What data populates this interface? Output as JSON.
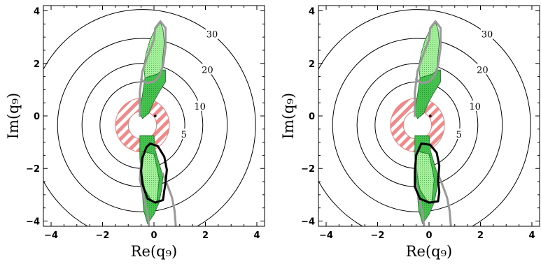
{
  "chart_data": [
    {
      "type": "contour",
      "xlabel": "Re(q₉)",
      "ylabel": "Im(q₉)",
      "xlim": [
        -4.3,
        4.3
      ],
      "ylim": [
        -4.2,
        4.2
      ],
      "x_ticks": [
        "−4",
        "−2",
        "0",
        "2",
        "4"
      ],
      "y_ticks": [
        "−4",
        "−2",
        "0",
        "2",
        "4"
      ],
      "contours": {
        "center": [
          -0.45,
          -0.35
        ],
        "levels": [
          {
            "label": "5",
            "radius": 1.65
          },
          {
            "label": "10",
            "radius": 2.35
          },
          {
            "label": "20",
            "radius": 3.3
          },
          {
            "label": "30",
            "radius": 4.4
          }
        ]
      },
      "hatched_annulus": {
        "center": [
          -0.45,
          -0.35
        ],
        "inner_radius": 0.55,
        "outer_radius": 1.05,
        "color": "#e97a7a"
      },
      "marker_point": [
        0.05,
        0.0
      ],
      "regions": {
        "light_green_upper": {
          "color": "#9ef08f",
          "points": [
            [
              -0.35,
              1.45
            ],
            [
              -0.4,
              1.9
            ],
            [
              -0.3,
              2.4
            ],
            [
              -0.15,
              2.9
            ],
            [
              0.05,
              3.3
            ],
            [
              0.25,
              3.55
            ],
            [
              0.35,
              3.3
            ],
            [
              0.4,
              2.8
            ],
            [
              0.35,
              2.3
            ],
            [
              0.3,
              1.75
            ],
            [
              0.15,
              1.6
            ]
          ]
        },
        "dark_green_mid": {
          "color": "#3fc24a",
          "points": [
            [
              -0.35,
              1.45
            ],
            [
              -0.45,
              0.8
            ],
            [
              -0.55,
              0.15
            ],
            [
              -0.45,
              -0.1
            ],
            [
              -0.2,
              0.1
            ],
            [
              0.0,
              0.55
            ],
            [
              0.2,
              0.9
            ],
            [
              0.45,
              1.3
            ],
            [
              0.45,
              1.75
            ],
            [
              0.3,
              1.75
            ],
            [
              0.15,
              1.6
            ]
          ]
        },
        "light_green_lower": {
          "color": "#9ef08f",
          "points": [
            [
              -0.45,
              -1.35
            ],
            [
              -0.5,
              -1.8
            ],
            [
              -0.45,
              -2.3
            ],
            [
              -0.35,
              -2.8
            ],
            [
              -0.1,
              -3.2
            ],
            [
              0.1,
              -3.3
            ],
            [
              0.15,
              -2.9
            ],
            [
              0.2,
              -2.4
            ],
            [
              0.1,
              -1.9
            ],
            [
              0.0,
              -1.45
            ]
          ]
        },
        "dark_green_lower": {
          "color": "#3fc24a",
          "points": [
            [
              -0.55,
              -0.75
            ],
            [
              0.0,
              -0.75
            ],
            [
              0.05,
              -1.3
            ],
            [
              0.2,
              -1.8
            ],
            [
              0.35,
              -2.3
            ],
            [
              0.3,
              -2.8
            ],
            [
              0.2,
              -3.3
            ],
            [
              0.0,
              -3.75
            ],
            [
              -0.25,
              -4.1
            ],
            [
              -0.4,
              -3.6
            ],
            [
              -0.45,
              -3.0
            ],
            [
              -0.5,
              -2.3
            ],
            [
              -0.55,
              -1.6
            ]
          ]
        }
      },
      "curves": {
        "gray_upper": {
          "color": "#999999",
          "points": [
            [
              -0.55,
              0.0
            ],
            [
              -0.55,
              0.9
            ],
            [
              -0.45,
              1.7
            ],
            [
              -0.2,
              2.4
            ],
            [
              0.0,
              2.9
            ],
            [
              0.05,
              3.35
            ],
            [
              0.25,
              3.6
            ],
            [
              0.45,
              3.35
            ],
            [
              0.45,
              2.6
            ],
            [
              0.35,
              1.9
            ],
            [
              0.2,
              1.5
            ],
            [
              0.0,
              1.3
            ],
            [
              -0.3,
              1.25
            ],
            [
              -0.5,
              1.4
            ]
          ]
        },
        "gray_lower": {
          "color": "#999999",
          "points": [
            [
              -0.5,
              -1.8
            ],
            [
              -0.55,
              -2.4
            ],
            [
              -0.4,
              -3.1
            ],
            [
              -0.25,
              -3.7
            ],
            [
              -0.2,
              -4.15
            ]
          ]
        },
        "gray_right": {
          "color": "#999999",
          "points": [
            [
              0.35,
              -2.2
            ],
            [
              0.55,
              -2.7
            ],
            [
              0.7,
              -3.1
            ],
            [
              0.8,
              -3.6
            ],
            [
              0.85,
              -4.2
            ]
          ]
        },
        "black_loop": {
          "color": "#000000",
          "points": [
            [
              -0.15,
              -1.05
            ],
            [
              0.15,
              -1.15
            ],
            [
              0.4,
              -1.55
            ],
            [
              0.5,
              -2.05
            ],
            [
              0.45,
              -2.55
            ],
            [
              0.4,
              -2.85
            ],
            [
              0.35,
              -3.2
            ],
            [
              0.05,
              -3.3
            ],
            [
              -0.25,
              -3.15
            ],
            [
              -0.45,
              -2.6
            ],
            [
              -0.5,
              -2.1
            ],
            [
              -0.45,
              -1.6
            ],
            [
              -0.3,
              -1.2
            ]
          ]
        }
      }
    },
    {
      "type": "contour",
      "xlabel": "Re(q₉)",
      "ylabel": "Im(q₉)",
      "xlim": [
        -4.3,
        4.3
      ],
      "ylim": [
        -4.2,
        4.2
      ],
      "x_ticks": [
        "−4",
        "−2",
        "0",
        "2",
        "4"
      ],
      "y_ticks": [
        "−4",
        "−2",
        "0",
        "2",
        "4"
      ],
      "contours": {
        "center": [
          -0.45,
          -0.35
        ],
        "levels": [
          {
            "label": "5",
            "radius": 1.65
          },
          {
            "label": "10",
            "radius": 2.35
          },
          {
            "label": "20",
            "radius": 3.3
          },
          {
            "label": "30",
            "radius": 4.4
          }
        ]
      },
      "hatched_annulus": {
        "center": [
          -0.45,
          -0.35
        ],
        "inner_radius": 0.55,
        "outer_radius": 1.05,
        "color": "#e97a7a"
      },
      "marker_point": [
        0.05,
        0.0
      ],
      "regions": {
        "light_green_upper": {
          "color": "#9ef08f",
          "points": [
            [
              -0.35,
              1.45
            ],
            [
              -0.4,
              1.9
            ],
            [
              -0.3,
              2.4
            ],
            [
              -0.15,
              2.9
            ],
            [
              0.05,
              3.3
            ],
            [
              0.25,
              3.55
            ],
            [
              0.35,
              3.3
            ],
            [
              0.4,
              2.8
            ],
            [
              0.35,
              2.3
            ],
            [
              0.3,
              1.75
            ],
            [
              0.15,
              1.6
            ]
          ]
        },
        "dark_green_mid": {
          "color": "#3fc24a",
          "points": [
            [
              -0.35,
              1.45
            ],
            [
              -0.45,
              0.8
            ],
            [
              -0.55,
              0.15
            ],
            [
              -0.45,
              -0.1
            ],
            [
              -0.2,
              0.1
            ],
            [
              0.0,
              0.55
            ],
            [
              0.2,
              0.9
            ],
            [
              0.45,
              1.3
            ],
            [
              0.45,
              1.75
            ],
            [
              0.3,
              1.75
            ],
            [
              0.15,
              1.6
            ]
          ]
        },
        "light_green_lower": {
          "color": "#9ef08f",
          "points": [
            [
              -0.45,
              -1.35
            ],
            [
              -0.5,
              -1.8
            ],
            [
              -0.45,
              -2.3
            ],
            [
              -0.35,
              -2.8
            ],
            [
              -0.1,
              -3.2
            ],
            [
              0.1,
              -3.3
            ],
            [
              0.15,
              -2.9
            ],
            [
              0.2,
              -2.4
            ],
            [
              0.1,
              -1.9
            ],
            [
              0.0,
              -1.45
            ]
          ]
        },
        "dark_green_lower": {
          "color": "#3fc24a",
          "points": [
            [
              -0.55,
              -0.75
            ],
            [
              0.0,
              -0.75
            ],
            [
              0.05,
              -1.3
            ],
            [
              0.2,
              -1.8
            ],
            [
              0.35,
              -2.3
            ],
            [
              0.3,
              -2.8
            ],
            [
              0.2,
              -3.3
            ],
            [
              0.0,
              -3.75
            ],
            [
              -0.25,
              -4.1
            ],
            [
              -0.4,
              -3.6
            ],
            [
              -0.45,
              -3.0
            ],
            [
              -0.5,
              -2.3
            ],
            [
              -0.55,
              -1.6
            ]
          ]
        }
      },
      "curves": {
        "gray_upper": {
          "color": "#999999",
          "points": [
            [
              -0.55,
              0.0
            ],
            [
              -0.55,
              0.9
            ],
            [
              -0.45,
              1.7
            ],
            [
              -0.2,
              2.4
            ],
            [
              0.0,
              2.9
            ],
            [
              0.05,
              3.35
            ],
            [
              0.25,
              3.6
            ],
            [
              0.45,
              3.35
            ],
            [
              0.45,
              2.6
            ],
            [
              0.35,
              1.9
            ],
            [
              0.2,
              1.5
            ],
            [
              0.0,
              1.3
            ],
            [
              -0.3,
              1.25
            ],
            [
              -0.5,
              1.4
            ]
          ]
        },
        "gray_lower": {
          "color": "#999999",
          "points": [
            [
              -0.5,
              -1.8
            ],
            [
              -0.55,
              -2.4
            ],
            [
              -0.4,
              -3.1
            ],
            [
              -0.25,
              -3.7
            ],
            [
              -0.2,
              -4.15
            ]
          ]
        },
        "gray_right": {
          "color": "#999999",
          "points": [
            [
              0.35,
              -2.2
            ],
            [
              0.55,
              -2.7
            ],
            [
              0.7,
              -3.1
            ],
            [
              0.8,
              -3.6
            ],
            [
              0.85,
              -4.2
            ]
          ]
        },
        "black_loop": {
          "color": "#000000",
          "points": [
            [
              -0.3,
              -1.05
            ],
            [
              0.05,
              -1.1
            ],
            [
              0.3,
              -1.4
            ],
            [
              0.4,
              -1.9
            ],
            [
              0.35,
              -2.45
            ],
            [
              0.4,
              -2.9
            ],
            [
              0.35,
              -3.25
            ],
            [
              0.0,
              -3.3
            ],
            [
              -0.35,
              -3.15
            ],
            [
              -0.55,
              -2.7
            ],
            [
              -0.55,
              -2.1
            ],
            [
              -0.5,
              -1.5
            ]
          ]
        }
      }
    }
  ]
}
